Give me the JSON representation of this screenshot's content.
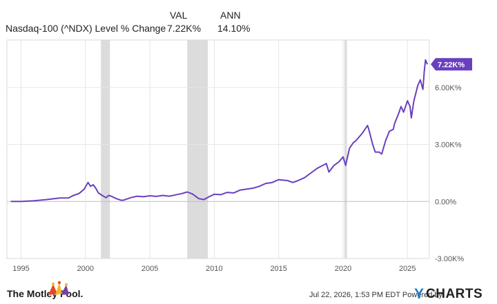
{
  "header": {
    "col_val": "VAL",
    "col_ann": "ANN",
    "series_name": "Nasdaq-100 (^NDX) Level % Change",
    "series_val": "7.22K%",
    "series_ann": "14.10%"
  },
  "chart_data": {
    "type": "line",
    "title": "",
    "xlabel": "",
    "ylabel": "",
    "series": [
      {
        "name": "Nasdaq-100 (^NDX) Level % Change",
        "color": "#6a3fbf",
        "points": [
          [
            1994.2,
            0
          ],
          [
            1995.0,
            5
          ],
          [
            1996.0,
            40
          ],
          [
            1997.0,
            100
          ],
          [
            1998.0,
            180
          ],
          [
            1998.7,
            190
          ],
          [
            1999.0,
            300
          ],
          [
            1999.5,
            420
          ],
          [
            1999.9,
            650
          ],
          [
            2000.2,
            1000
          ],
          [
            2000.4,
            800
          ],
          [
            2000.6,
            880
          ],
          [
            2000.8,
            700
          ],
          [
            2001.0,
            450
          ],
          [
            2001.3,
            320
          ],
          [
            2001.6,
            200
          ],
          [
            2001.8,
            320
          ],
          [
            2002.0,
            280
          ],
          [
            2002.4,
            150
          ],
          [
            2002.8,
            60
          ],
          [
            2003.0,
            80
          ],
          [
            2003.5,
            200
          ],
          [
            2004.0,
            280
          ],
          [
            2004.5,
            250
          ],
          [
            2005.0,
            300
          ],
          [
            2005.5,
            270
          ],
          [
            2006.0,
            320
          ],
          [
            2006.5,
            280
          ],
          [
            2007.0,
            350
          ],
          [
            2007.5,
            420
          ],
          [
            2007.9,
            500
          ],
          [
            2008.3,
            400
          ],
          [
            2008.8,
            150
          ],
          [
            2009.2,
            100
          ],
          [
            2009.6,
            250
          ],
          [
            2010.0,
            380
          ],
          [
            2010.5,
            360
          ],
          [
            2011.0,
            480
          ],
          [
            2011.5,
            450
          ],
          [
            2012.0,
            600
          ],
          [
            2012.5,
            650
          ],
          [
            2013.0,
            700
          ],
          [
            2013.5,
            800
          ],
          [
            2014.0,
            950
          ],
          [
            2014.5,
            1000
          ],
          [
            2015.0,
            1150
          ],
          [
            2015.7,
            1100
          ],
          [
            2016.1,
            1000
          ],
          [
            2016.5,
            1100
          ],
          [
            2017.0,
            1250
          ],
          [
            2017.5,
            1500
          ],
          [
            2018.0,
            1750
          ],
          [
            2018.7,
            2000
          ],
          [
            2018.9,
            1550
          ],
          [
            2019.3,
            1900
          ],
          [
            2019.7,
            2100
          ],
          [
            2020.0,
            2350
          ],
          [
            2020.2,
            1900
          ],
          [
            2020.5,
            2800
          ],
          [
            2020.8,
            3100
          ],
          [
            2021.0,
            3200
          ],
          [
            2021.5,
            3600
          ],
          [
            2021.9,
            4000
          ],
          [
            2022.0,
            3800
          ],
          [
            2022.3,
            3000
          ],
          [
            2022.5,
            2600
          ],
          [
            2022.8,
            2600
          ],
          [
            2023.0,
            2500
          ],
          [
            2023.3,
            3200
          ],
          [
            2023.6,
            3700
          ],
          [
            2023.9,
            3800
          ],
          [
            2024.0,
            4100
          ],
          [
            2024.3,
            4600
          ],
          [
            2024.5,
            5000
          ],
          [
            2024.7,
            4700
          ],
          [
            2025.0,
            5300
          ],
          [
            2025.2,
            5000
          ],
          [
            2025.3,
            4400
          ],
          [
            2025.5,
            5300
          ],
          [
            2025.8,
            6100
          ],
          [
            2026.0,
            6400
          ],
          [
            2026.2,
            5900
          ],
          [
            2026.3,
            6800
          ],
          [
            2026.4,
            7450
          ],
          [
            2026.55,
            7220
          ]
        ]
      }
    ],
    "x_ticks": [
      "1995",
      "2000",
      "2005",
      "2010",
      "2015",
      "2020",
      "2025"
    ],
    "x_tick_values": [
      1995,
      2000,
      2005,
      2010,
      2015,
      2020,
      2025
    ],
    "y_ticks": [
      "-3.00K%",
      "0.00%",
      "3.00K%",
      "6.00K%"
    ],
    "y_tick_values": [
      -3000,
      0,
      3000,
      6000
    ],
    "xlim": [
      1993.9,
      2026.7
    ],
    "ylim": [
      -3000,
      8500
    ],
    "last_value_label": "7.22K%",
    "recessions": [
      [
        2001.2,
        2001.9
      ],
      [
        2007.9,
        2009.5
      ],
      [
        2020.1,
        2020.3
      ]
    ],
    "grid": true,
    "legend": "top-left"
  },
  "footer": {
    "brand": "The Motley Fool.",
    "credit": "Jul 22, 2026, 1:53 PM EDT Powered by",
    "ycharts_y": "Y",
    "ycharts_text": "CHARTS"
  },
  "colors": {
    "line": "#6a3fbf",
    "recession": "#dcdcdc",
    "grid": "#e6e6e6",
    "axis_text": "#555555",
    "ycharts_blue": "#1e7bd2"
  }
}
